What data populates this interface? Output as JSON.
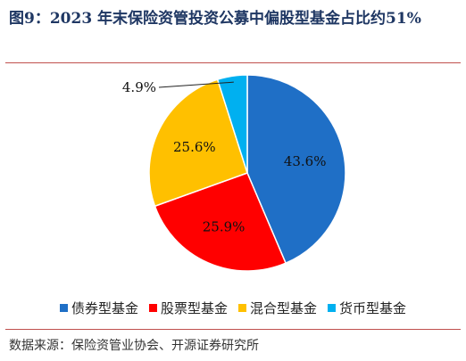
{
  "header": {
    "title": "图9：2023 年末保险资管投资公募中偏股型基金占比约51%"
  },
  "chart_data": {
    "type": "pie",
    "categories": [
      "债券型基金",
      "股票型基金",
      "混合型基金",
      "货币型基金"
    ],
    "values": [
      43.6,
      25.9,
      25.6,
      4.9
    ],
    "value_labels": [
      "43.6%",
      "25.9%",
      "25.6%",
      "4.9%"
    ],
    "colors": [
      "#1f6fc6",
      "#ff0000",
      "#ffc000",
      "#00b0f0"
    ],
    "start_angle_deg": 0,
    "direction": "clockwise",
    "legend_position": "bottom"
  },
  "footer": {
    "source": "数据来源：保险资管业协会、开源证券研究所"
  }
}
